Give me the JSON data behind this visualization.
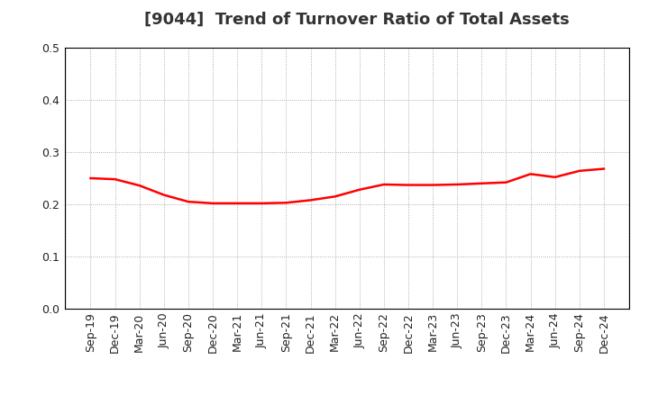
{
  "title": "[9044]  Trend of Turnover Ratio of Total Assets",
  "x_labels": [
    "Sep-19",
    "Dec-19",
    "Mar-20",
    "Jun-20",
    "Sep-20",
    "Dec-20",
    "Mar-21",
    "Jun-21",
    "Sep-21",
    "Dec-21",
    "Mar-22",
    "Jun-22",
    "Sep-22",
    "Dec-22",
    "Mar-23",
    "Jun-23",
    "Sep-23",
    "Dec-23",
    "Mar-24",
    "Jun-24",
    "Sep-24",
    "Dec-24"
  ],
  "y_values": [
    0.25,
    0.248,
    0.236,
    0.218,
    0.205,
    0.202,
    0.202,
    0.202,
    0.203,
    0.208,
    0.215,
    0.228,
    0.238,
    0.237,
    0.237,
    0.238,
    0.24,
    0.242,
    0.258,
    0.252,
    0.264,
    0.268
  ],
  "line_color": "#FF0000",
  "line_width": 1.8,
  "ylim": [
    0.0,
    0.5
  ],
  "yticks": [
    0.0,
    0.1,
    0.2,
    0.3,
    0.4,
    0.5
  ],
  "background_color": "#ffffff",
  "grid_color": "#999999",
  "title_fontsize": 13,
  "tick_fontsize": 9,
  "title_color": "#333333"
}
